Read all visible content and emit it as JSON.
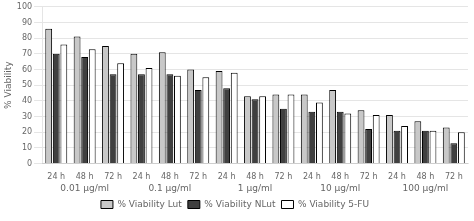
{
  "chart_data": {
    "type": "bar",
    "ylabel": "% Viability",
    "categories": [
      "24 h",
      "48 h",
      "72 h",
      "24 h",
      "48 h",
      "72 h",
      "24 h",
      "48 h",
      "72 h",
      "24 h",
      "48 h",
      "72 h",
      "24 h",
      "48 h",
      "72 h"
    ],
    "annotations": [
      "0.01 μg/ml",
      "0.1 μg/ml",
      "1 μg/ml",
      "10 μg/ml",
      "100 μg/ml"
    ],
    "series": [
      {
        "name": "% Viability Lut",
        "color": "#c8c8c8",
        "values": [
          86,
          81,
          75,
          70,
          71,
          60,
          59,
          43,
          44,
          44,
          47,
          34,
          31,
          27,
          23
        ]
      },
      {
        "name": "% Viability NLut",
        "color": "#404040",
        "values": [
          70,
          68,
          57,
          57,
          57,
          47,
          48,
          41,
          35,
          33,
          33,
          22,
          21,
          21,
          13
        ]
      },
      {
        "name": "% Viability 5-FU",
        "color": "#ffffff",
        "values": [
          76,
          73,
          64,
          61,
          56,
          55,
          58,
          43,
          44,
          39,
          32,
          31,
          24,
          21,
          20
        ]
      }
    ],
    "ylim": [
      0,
      100
    ],
    "yticks": [
      0,
      10,
      20,
      30,
      40,
      50,
      60,
      70,
      80,
      90,
      100
    ],
    "grid": true,
    "legend": "bottom"
  }
}
